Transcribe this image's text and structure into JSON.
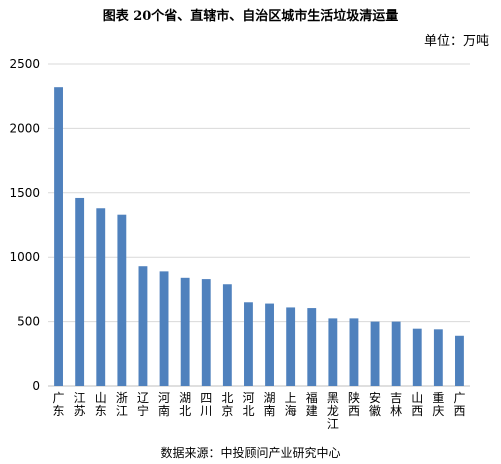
{
  "figure": {
    "title": "图表    20个省、直辖市、自治区城市生活垃圾清运量",
    "unit": "单位：万吨",
    "source": "数据来源：中投顾问产业研究中心"
  },
  "chart_data": {
    "type": "bar",
    "title": "图表    20个省、直辖市、自治区城市生活垃圾清运量",
    "xlabel": "",
    "ylabel": "",
    "unit": "单位：万吨",
    "ylim": [
      0,
      2500
    ],
    "yticks": [
      0,
      500,
      1000,
      1500,
      2000,
      2500
    ],
    "grid": true,
    "legend": "none",
    "color": "#4f81bd",
    "categories": [
      "广东",
      "江苏",
      "山东",
      "浙江",
      "辽宁",
      "河南",
      "湖北",
      "四川",
      "北京",
      "河北",
      "湖南",
      "上海",
      "福建",
      "黑龙江",
      "陕西",
      "安徽",
      "吉林",
      "山西",
      "重庆",
      "广西"
    ],
    "values": [
      2320,
      1460,
      1380,
      1330,
      930,
      890,
      840,
      830,
      790,
      650,
      640,
      610,
      605,
      525,
      525,
      500,
      500,
      445,
      440,
      390
    ]
  }
}
